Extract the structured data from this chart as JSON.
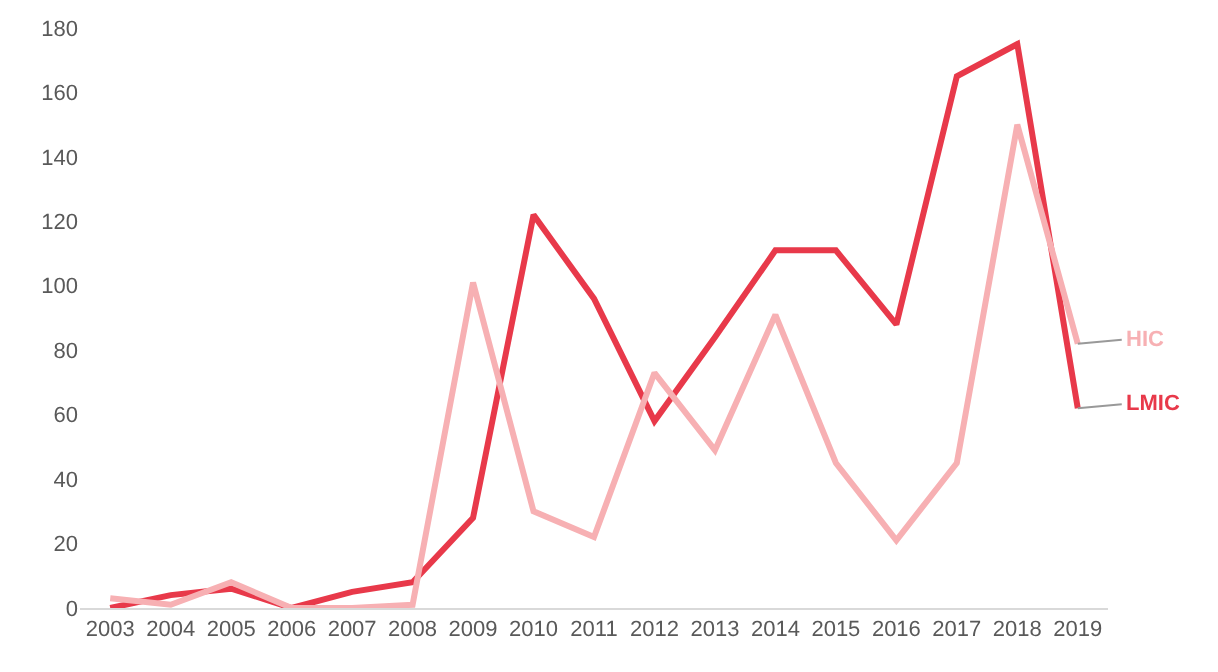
{
  "chart_data": {
    "type": "line",
    "categories": [
      "2003",
      "2004",
      "2005",
      "2006",
      "2007",
      "2008",
      "2009",
      "2010",
      "2011",
      "2012",
      "2013",
      "2014",
      "2015",
      "2016",
      "2017",
      "2018",
      "2019"
    ],
    "series": [
      {
        "name": "LMIC",
        "color": "#e8394a",
        "values": [
          0,
          4,
          6,
          0,
          5,
          8,
          28,
          122,
          96,
          58,
          84,
          111,
          111,
          88,
          165,
          175,
          62
        ]
      },
      {
        "name": "HIC",
        "color": "#f7b0b3",
        "values": [
          3,
          1,
          8,
          0,
          0,
          1,
          101,
          30,
          22,
          73,
          49,
          91,
          45,
          21,
          45,
          150,
          82
        ]
      }
    ],
    "ylim": [
      0,
      180
    ],
    "yticks": [
      0,
      20,
      40,
      60,
      80,
      100,
      120,
      140,
      160,
      180
    ],
    "grid": false,
    "legend": false,
    "marker": "none",
    "line_style": "solid"
  }
}
